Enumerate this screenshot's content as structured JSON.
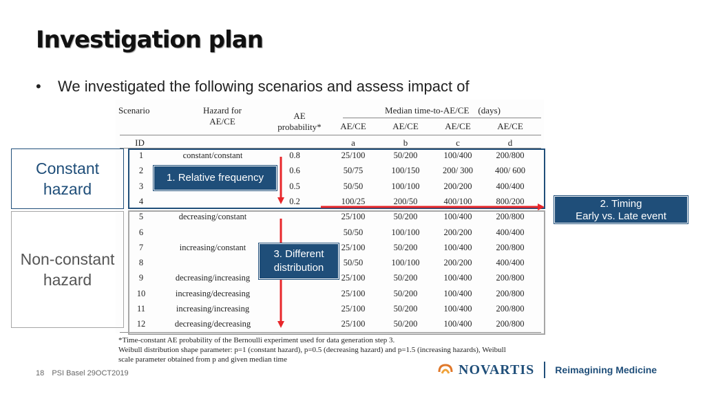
{
  "slide": {
    "title": "Investigation plan",
    "bullet_symbol": "•",
    "bullet_text": "We investigated the following scenarios and assess impact of"
  },
  "table": {
    "headers": {
      "scenario": "Scenario",
      "hazard": "Hazard for\nAE/CE",
      "ae_prob": "AE\nprobability*",
      "median": "Median time-to-AE/CE    (days)",
      "aece": "AE/CE",
      "id": "ID",
      "a": "a",
      "b": "b",
      "c": "c",
      "d": "d"
    },
    "rows": [
      {
        "id": "1",
        "hazard": "constant/constant",
        "prob": "0.8",
        "a": "25/100",
        "b": "50/200",
        "c": "100/400",
        "d": "200/800"
      },
      {
        "id": "2",
        "hazard": "",
        "prob": "0.6",
        "a": "50/75",
        "b": "100/150",
        "c": "200/ 300",
        "d": "400/ 600"
      },
      {
        "id": "3",
        "hazard": "",
        "prob": "0.5",
        "a": "50/50",
        "b": "100/100",
        "c": "200/200",
        "d": "400/400"
      },
      {
        "id": "4",
        "hazard": "",
        "prob": "0.2",
        "a": "100/25",
        "b": "200/50",
        "c": "400/100",
        "d": "800/200"
      },
      {
        "id": "5",
        "hazard": "decreasing/constant",
        "prob": "",
        "a": "25/100",
        "b": "50/200",
        "c": "100/400",
        "d": "200/800"
      },
      {
        "id": "6",
        "hazard": "",
        "prob": "",
        "a": "50/50",
        "b": "100/100",
        "c": "200/200",
        "d": "400/400"
      },
      {
        "id": "7",
        "hazard": "increasing/constant",
        "prob": "",
        "a": "25/100",
        "b": "50/200",
        "c": "100/400",
        "d": "200/800"
      },
      {
        "id": "8",
        "hazard": "",
        "prob": "",
        "a": "50/50",
        "b": "100/100",
        "c": "200/200",
        "d": "400/400"
      },
      {
        "id": "9",
        "hazard": "decreasing/increasing",
        "prob": "",
        "a": "25/100",
        "b": "50/200",
        "c": "100/400",
        "d": "200/800"
      },
      {
        "id": "10",
        "hazard": "increasing/decreasing",
        "prob": "",
        "a": "25/100",
        "b": "50/200",
        "c": "100/400",
        "d": "200/800"
      },
      {
        "id": "11",
        "hazard": "increasing/increasing",
        "prob": "",
        "a": "25/100",
        "b": "50/200",
        "c": "100/400",
        "d": "200/800"
      },
      {
        "id": "12",
        "hazard": "decreasing/decreasing",
        "prob": "",
        "a": "25/100",
        "b": "50/200",
        "c": "100/400",
        "d": "200/800"
      }
    ],
    "footnote_line1": "*Time-constant AE probability of the Bernoulli experiment used for data generation step 3.",
    "footnote_line2": "Weibull distribution shape parameter: p=1 (constant hazard), p=0.5 (decreasing hazard) and p=1.5 (increasing hazards), Weibull",
    "footnote_line3": "scale parameter obtained from p and given median time"
  },
  "groups": {
    "constant": "Constant hazard",
    "nonconstant": "Non-constant hazard"
  },
  "callouts": {
    "frequency": "1. Relative frequency",
    "timing_line1": "2. Timing",
    "timing_line2": "Early vs. Late event",
    "distribution_line1": "3. Different",
    "distribution_line2": "distribution"
  },
  "footer": {
    "page": "18",
    "event": "PSI Basel 29OCT2019",
    "brand": "NOVARTIS",
    "tagline": "Reimagining Medicine"
  },
  "colors": {
    "accent_blue": "#1f4e79",
    "arrow_red": "#e8262a",
    "box_gray": "#a6a6a6"
  }
}
